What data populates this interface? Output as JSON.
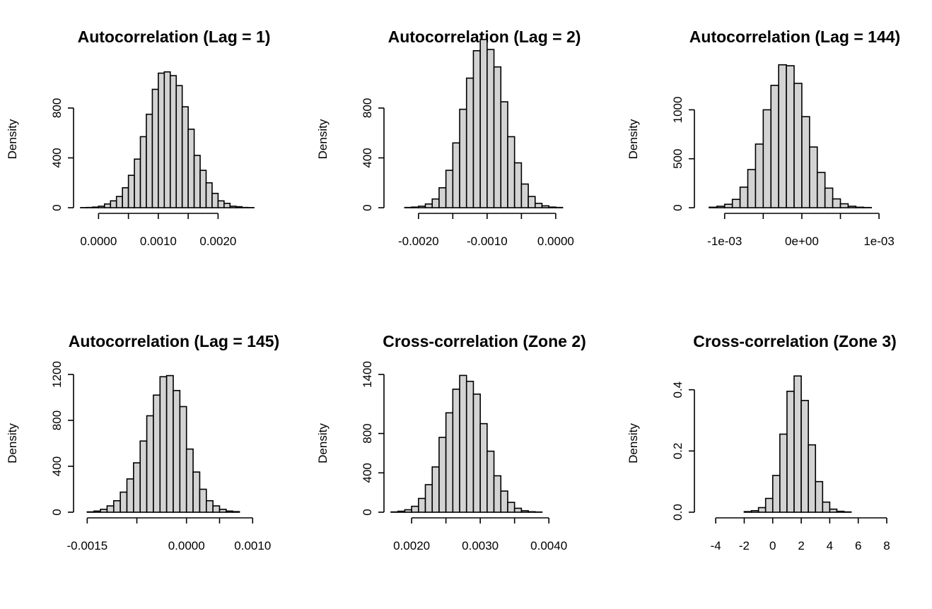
{
  "bar_fill": "#d3d3d3",
  "bar_stroke": "#000000",
  "chart_data": [
    {
      "type": "bar",
      "title": "Autocorrelation (Lag = 1)",
      "xlabel": "",
      "ylabel": "Density",
      "xticks": [
        "0.0000",
        "0.0010",
        "0.0020"
      ],
      "yticks": [
        "0",
        "400",
        "800"
      ],
      "xlim": [
        -0.0003,
        0.0028
      ],
      "ylim": [
        0,
        1100
      ],
      "bin_start": -0.0003,
      "bin_width": 0.0001,
      "values": [
        1,
        2,
        5,
        12,
        30,
        55,
        90,
        160,
        260,
        390,
        570,
        750,
        950,
        1080,
        1090,
        1060,
        980,
        810,
        630,
        420,
        300,
        200,
        115,
        55,
        35,
        12,
        8,
        2,
        1
      ]
    },
    {
      "type": "bar",
      "title": "Autocorrelation (Lag = 2)",
      "xlabel": "",
      "ylabel": "Density",
      "xticks": [
        "-0.0020",
        "-0.0010",
        "0.0000"
      ],
      "yticks": [
        "0",
        "400",
        "800"
      ],
      "xlim": [
        -0.0024,
        0.0003
      ],
      "ylim": [
        0,
        1100
      ],
      "bin_start": -0.0022,
      "bin_width": 0.0001,
      "values": [
        2,
        5,
        12,
        30,
        70,
        160,
        300,
        520,
        790,
        1040,
        1260,
        1350,
        1270,
        1130,
        850,
        570,
        360,
        190,
        90,
        35,
        15,
        5,
        2
      ]
    },
    {
      "type": "bar",
      "title": "Autocorrelation (Lag = 144)",
      "xlabel": "",
      "ylabel": "Density",
      "xticks": [
        "-1e-03",
        "0e+00",
        "1e-03"
      ],
      "yticks": [
        "0",
        "500",
        "1000"
      ],
      "xlim": [
        -0.0013,
        0.0011
      ],
      "ylim": [
        0,
        1400
      ],
      "bin_start": -0.0012,
      "bin_width": 0.0001,
      "values": [
        5,
        15,
        35,
        85,
        210,
        390,
        650,
        1000,
        1250,
        1460,
        1450,
        1270,
        930,
        620,
        360,
        200,
        90,
        40,
        15,
        5,
        2
      ]
    },
    {
      "type": "bar",
      "title": "Autocorrelation (Lag = 145)",
      "xlabel": "",
      "ylabel": "Density",
      "xticks": [
        "-0.0015",
        "0.0000",
        "0.0010"
      ],
      "yticks": [
        "0",
        "400",
        "800",
        "1200"
      ],
      "xlim": [
        -0.0016,
        0.0012
      ],
      "ylim": [
        0,
        1200
      ],
      "bin_start": -0.0015,
      "bin_width": 0.0001,
      "values": [
        3,
        10,
        25,
        55,
        100,
        175,
        290,
        430,
        620,
        840,
        1020,
        1180,
        1190,
        1060,
        920,
        550,
        350,
        200,
        100,
        55,
        25,
        10,
        5
      ]
    },
    {
      "type": "bar",
      "title": "Cross-correlation (Zone 2)",
      "xlabel": "",
      "ylabel": "Density",
      "xticks": [
        "0.0020",
        "0.0030",
        "0.0040"
      ],
      "yticks": [
        "0",
        "400",
        "800",
        "1400"
      ],
      "xlim": [
        0.0017,
        0.0044
      ],
      "ylim": [
        0,
        1400
      ],
      "bin_start": 0.0017,
      "bin_width": 0.0001,
      "values": [
        3,
        10,
        25,
        60,
        140,
        280,
        460,
        760,
        1010,
        1250,
        1390,
        1330,
        1200,
        900,
        620,
        370,
        215,
        100,
        40,
        15,
        5,
        2
      ]
    },
    {
      "type": "bar",
      "title": "Cross-correlation (Zone 3)",
      "xlabel": "",
      "ylabel": "Density",
      "xticks": [
        "-4",
        "-2",
        "0",
        "2",
        "4",
        "6",
        "8"
      ],
      "yticks": [
        "0.0",
        "0.2",
        "0.4"
      ],
      "xlim": [
        -5,
        8
      ],
      "ylim": [
        0,
        0.45
      ],
      "bin_start": -2,
      "bin_width": 0.5,
      "values": [
        0.002,
        0.005,
        0.015,
        0.045,
        0.12,
        0.255,
        0.395,
        0.445,
        0.365,
        0.22,
        0.1,
        0.033,
        0.01,
        0.003,
        0.001
      ]
    }
  ]
}
